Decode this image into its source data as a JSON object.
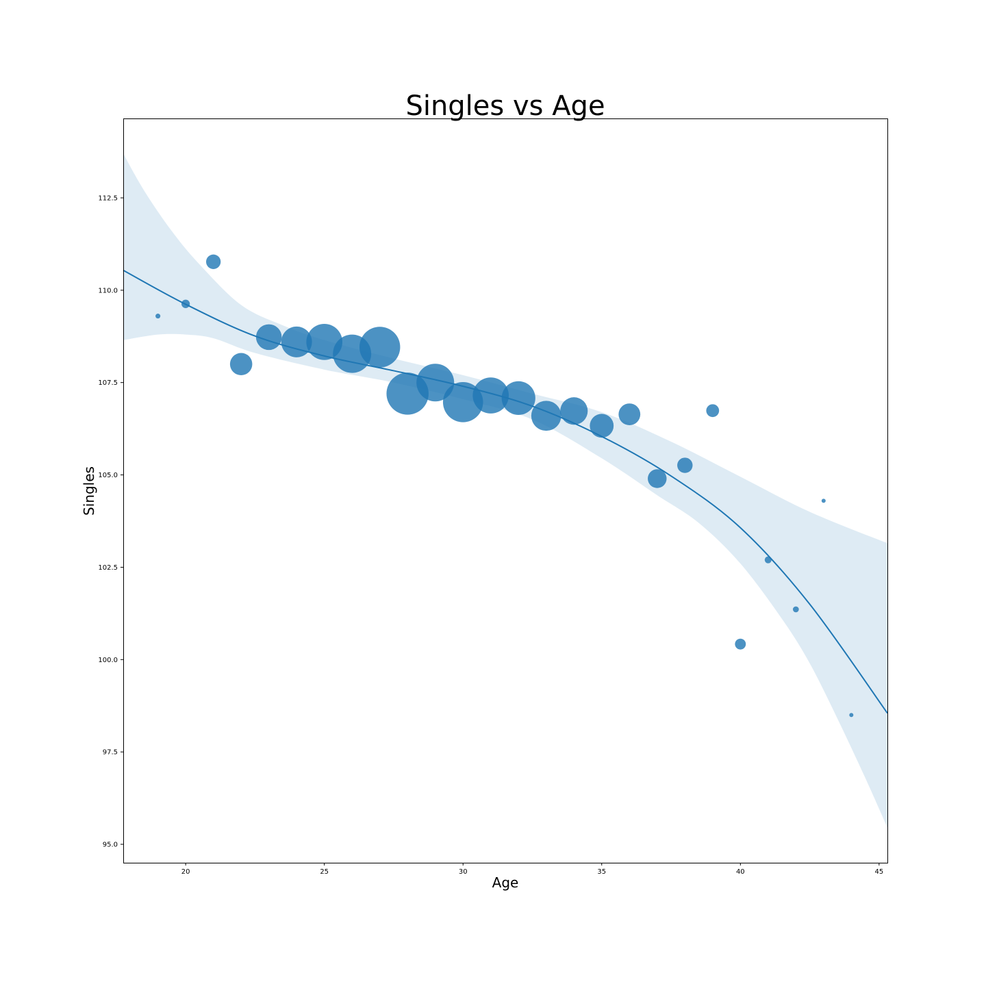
{
  "chart_data": {
    "type": "scatter",
    "title": "Singles vs Age",
    "xlabel": "Age",
    "ylabel": "Singles",
    "xlim": [
      17.75,
      45.3
    ],
    "ylim": [
      94.5,
      114.65
    ],
    "xticks": [
      20,
      25,
      30,
      35,
      40,
      45
    ],
    "yticks": [
      95.0,
      97.5,
      100.0,
      102.5,
      105.0,
      107.5,
      110.0,
      112.5
    ],
    "grid": false,
    "colors": {
      "points": "#1f77b4",
      "line": "#1f77b4",
      "band": "#1f77b4"
    },
    "points": [
      {
        "x": 19,
        "y": 109.3,
        "size": 1
      },
      {
        "x": 20,
        "y": 109.63,
        "size": 3
      },
      {
        "x": 21,
        "y": 110.77,
        "size": 9
      },
      {
        "x": 22,
        "y": 108.0,
        "size": 21
      },
      {
        "x": 23,
        "y": 108.73,
        "size": 28
      },
      {
        "x": 24,
        "y": 108.6,
        "size": 40
      },
      {
        "x": 25,
        "y": 108.6,
        "size": 55
      },
      {
        "x": 26,
        "y": 108.28,
        "size": 62
      },
      {
        "x": 27,
        "y": 108.46,
        "size": 70
      },
      {
        "x": 28,
        "y": 107.2,
        "size": 75
      },
      {
        "x": 29,
        "y": 107.5,
        "size": 60
      },
      {
        "x": 30,
        "y": 106.97,
        "size": 68
      },
      {
        "x": 31,
        "y": 107.15,
        "size": 55
      },
      {
        "x": 32,
        "y": 107.08,
        "size": 48
      },
      {
        "x": 33,
        "y": 106.6,
        "size": 38
      },
      {
        "x": 34,
        "y": 106.73,
        "size": 32
      },
      {
        "x": 35,
        "y": 106.33,
        "size": 24
      },
      {
        "x": 36,
        "y": 106.64,
        "size": 20
      },
      {
        "x": 37,
        "y": 104.9,
        "size": 15
      },
      {
        "x": 38,
        "y": 105.26,
        "size": 10
      },
      {
        "x": 39,
        "y": 106.74,
        "size": 7
      },
      {
        "x": 40,
        "y": 100.42,
        "size": 5
      },
      {
        "x": 41,
        "y": 102.7,
        "size": 2
      },
      {
        "x": 42,
        "y": 101.36,
        "size": 1.5
      },
      {
        "x": 43,
        "y": 104.3,
        "size": 0.6
      },
      {
        "x": 44,
        "y": 98.5,
        "size": 0.6
      }
    ],
    "regression": {
      "order": 2,
      "fit": [
        {
          "x": 17.75,
          "y": 110.54
        },
        {
          "x": 20,
          "y": 109.62
        },
        {
          "x": 22.5,
          "y": 108.76
        },
        {
          "x": 25,
          "y": 108.22
        },
        {
          "x": 27.5,
          "y": 107.82
        },
        {
          "x": 30,
          "y": 107.4
        },
        {
          "x": 32.5,
          "y": 106.86
        },
        {
          "x": 35,
          "y": 106.04
        },
        {
          "x": 37.5,
          "y": 104.97
        },
        {
          "x": 40,
          "y": 103.57
        },
        {
          "x": 42.5,
          "y": 101.5
        },
        {
          "x": 45.3,
          "y": 98.55
        }
      ],
      "ci_upper": [
        {
          "x": 17.75,
          "y": 113.7
        },
        {
          "x": 18.5,
          "y": 112.7
        },
        {
          "x": 19.5,
          "y": 111.6
        },
        {
          "x": 20.5,
          "y": 110.7
        },
        {
          "x": 22,
          "y": 109.6
        },
        {
          "x": 23.5,
          "y": 109.05
        },
        {
          "x": 25,
          "y": 108.65
        },
        {
          "x": 27.5,
          "y": 108.15
        },
        {
          "x": 30,
          "y": 107.7
        },
        {
          "x": 32.5,
          "y": 107.2
        },
        {
          "x": 35,
          "y": 106.7
        },
        {
          "x": 37.5,
          "y": 105.9
        },
        {
          "x": 40,
          "y": 104.95
        },
        {
          "x": 42.5,
          "y": 104.0
        },
        {
          "x": 45.3,
          "y": 103.15
        }
      ],
      "ci_lower": [
        {
          "x": 17.75,
          "y": 108.65
        },
        {
          "x": 19,
          "y": 108.8
        },
        {
          "x": 20,
          "y": 108.8
        },
        {
          "x": 21,
          "y": 108.7
        },
        {
          "x": 22.5,
          "y": 108.3
        },
        {
          "x": 25,
          "y": 107.85
        },
        {
          "x": 27.5,
          "y": 107.5
        },
        {
          "x": 30,
          "y": 107.05
        },
        {
          "x": 32.5,
          "y": 106.5
        },
        {
          "x": 35,
          "y": 105.45
        },
        {
          "x": 37,
          "y": 104.45
        },
        {
          "x": 38.5,
          "y": 103.7
        },
        {
          "x": 40,
          "y": 102.6
        },
        {
          "x": 41.5,
          "y": 101.1
        },
        {
          "x": 42.5,
          "y": 99.9
        },
        {
          "x": 43.5,
          "y": 98.4
        },
        {
          "x": 44.5,
          "y": 96.8
        },
        {
          "x": 45.3,
          "y": 95.45
        }
      ]
    }
  }
}
